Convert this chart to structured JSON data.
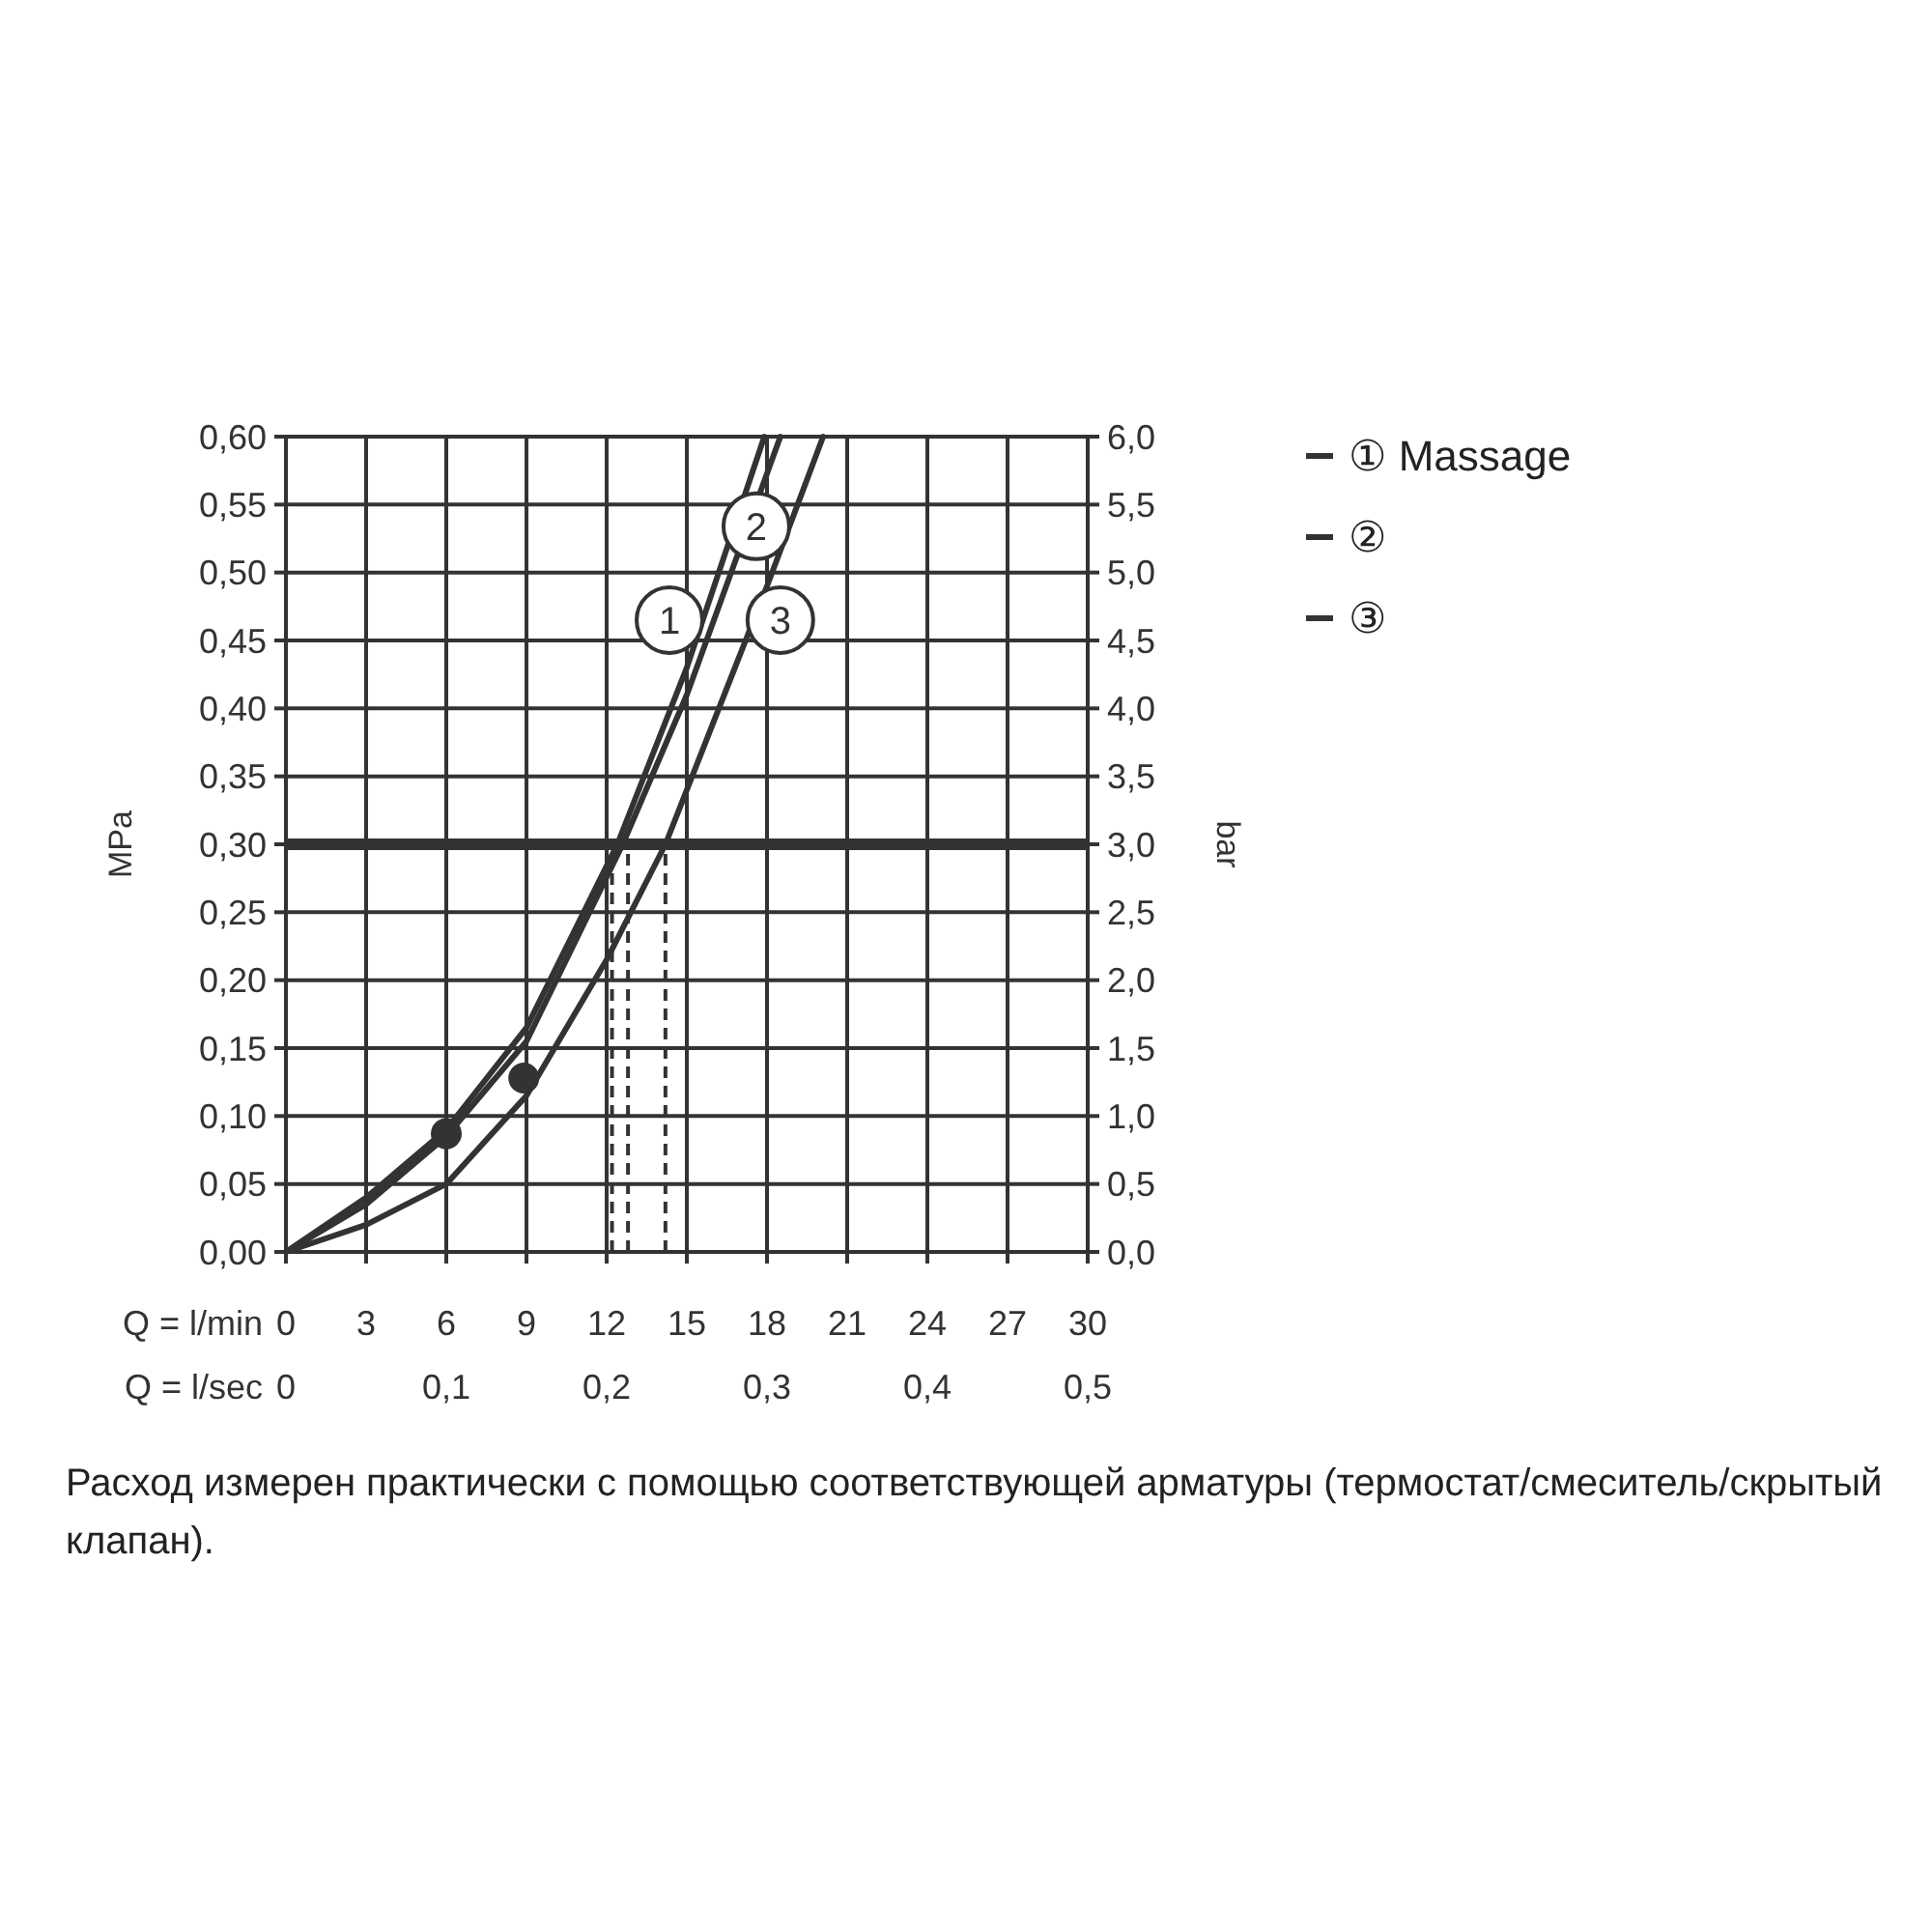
{
  "chart_data": {
    "type": "line",
    "xlabel": "Q = l/min",
    "x2label": "Q = l/sec",
    "ylabel": "MPa",
    "y2label": "bar",
    "xlim": [
      0,
      30
    ],
    "xticks": [
      0,
      3,
      6,
      9,
      12,
      15,
      18,
      21,
      24,
      27,
      30
    ],
    "x2lim": [
      0,
      0.5
    ],
    "x2ticks": [
      0,
      {
        "value": 0.1,
        "label": "0,1"
      },
      {
        "value": 0.2,
        "label": "0,2"
      },
      {
        "value": 0.3,
        "label": "0,3"
      },
      {
        "value": 0.4,
        "label": "0,4"
      },
      {
        "value": 0.5,
        "label": "0,5"
      }
    ],
    "ylim": [
      0,
      0.6
    ],
    "yticks": [
      {
        "value": 0,
        "label": "0,00"
      },
      {
        "value": 0.05,
        "label": "0,05"
      },
      {
        "value": 0.1,
        "label": "0,10"
      },
      {
        "value": 0.15,
        "label": "0,15"
      },
      {
        "value": 0.2,
        "label": "0,20"
      },
      {
        "value": 0.25,
        "label": "0,25"
      },
      {
        "value": 0.3,
        "label": "0,30"
      },
      {
        "value": 0.35,
        "label": "0,35"
      },
      {
        "value": 0.4,
        "label": "0,40"
      },
      {
        "value": 0.45,
        "label": "0,45"
      },
      {
        "value": 0.5,
        "label": "0,50"
      },
      {
        "value": 0.55,
        "label": "0,55"
      },
      {
        "value": 0.6,
        "label": "0,60"
      }
    ],
    "y2lim": [
      0,
      6
    ],
    "y2ticks": [
      {
        "value": 0,
        "label": "0,0"
      },
      {
        "value": 0.5,
        "label": "0,5"
      },
      {
        "value": 1,
        "label": "1,0"
      },
      {
        "value": 1.5,
        "label": "1,5"
      },
      {
        "value": 2,
        "label": "2,0"
      },
      {
        "value": 2.5,
        "label": "2,5"
      },
      {
        "value": 3,
        "label": "3,0"
      },
      {
        "value": 3.5,
        "label": "3,5"
      },
      {
        "value": 4,
        "label": "4,0"
      },
      {
        "value": 4.5,
        "label": "4,5"
      },
      {
        "value": 5,
        "label": "5,0"
      },
      {
        "value": 5.5,
        "label": "5,5"
      },
      {
        "value": 6,
        "label": "6,0"
      }
    ],
    "grid": true,
    "legend": "top right",
    "marker": "none",
    "line_style": "solid",
    "series": [
      {
        "name": "① Massage",
        "color": "#333333",
        "x": [
          0,
          3,
          6,
          9,
          12.4,
          15,
          17.9
        ],
        "values": [
          0,
          0.04,
          0.09,
          0.165,
          0.3,
          0.43,
          0.6
        ]
      },
      {
        "name": "②",
        "color": "#333333",
        "x": [
          0,
          3,
          6,
          9,
          12.6,
          15,
          18.5
        ],
        "values": [
          0,
          0.035,
          0.085,
          0.155,
          0.3,
          0.41,
          0.6
        ]
      },
      {
        "name": "③",
        "color": "#333333",
        "x": [
          0,
          3,
          6,
          9,
          12,
          14.2,
          16,
          18,
          20.1
        ],
        "values": [
          0,
          0.02,
          0.05,
          0.115,
          0.215,
          0.3,
          0.39,
          0.49,
          0.6
        ]
      },
      {
        "type": "scatter",
        "marker": "circle",
        "color": "#333333",
        "x": [
          6,
          8.9
        ],
        "values": [
          0.087,
          0.128
        ]
      }
    ],
    "ref_lines": [
      {
        "axis": "y",
        "value": 0.3,
        "line_style": "solid",
        "color": "#333333"
      },
      {
        "axis": "x",
        "value": 12.2,
        "line_style": "dashed",
        "color": "#333333"
      },
      {
        "axis": "x",
        "value": 12.8,
        "line_style": "dashed",
        "color": "#333333"
      },
      {
        "axis": "x",
        "value": 14.2,
        "line_style": "dashed",
        "color": "#333333"
      }
    ],
    "annotations": [
      {
        "text": "1",
        "x": 14.35,
        "y": 0.465
      },
      {
        "text": "2",
        "x": 17.6,
        "y": 0.534
      },
      {
        "text": "3",
        "x": 18.5,
        "y": 0.465
      },
      "Расход измерен практически с помощью соответствующей арматуры (термостат/смеситель/скрытый клапан)."
    ]
  }
}
